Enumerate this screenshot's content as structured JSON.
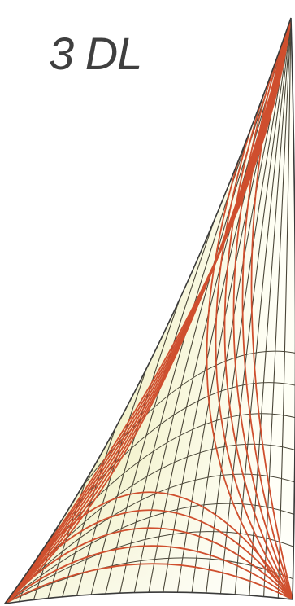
{
  "title": "3 DL",
  "colors": {
    "background": "#ffffff",
    "title_text": "#3f3f3f",
    "sail_fill_light": "#fffff6",
    "sail_fill_dark": "#ecebb0",
    "sail_outline": "#3a3a3a",
    "dark_fiber": "#4a4638",
    "red_fiber": "#cf4f2e"
  },
  "sail": {
    "shape": "triangular mainsail",
    "corners": [
      "head",
      "tack",
      "clew"
    ]
  },
  "fiber_layout": {
    "dark_fibers_from_head": 20,
    "dark_fibers_from_tack": 8,
    "red_fibers_from_tack_to_head": 7,
    "red_fibers_from_clew_to_head": 6,
    "red_arcs_tack_to_clew": 5
  }
}
